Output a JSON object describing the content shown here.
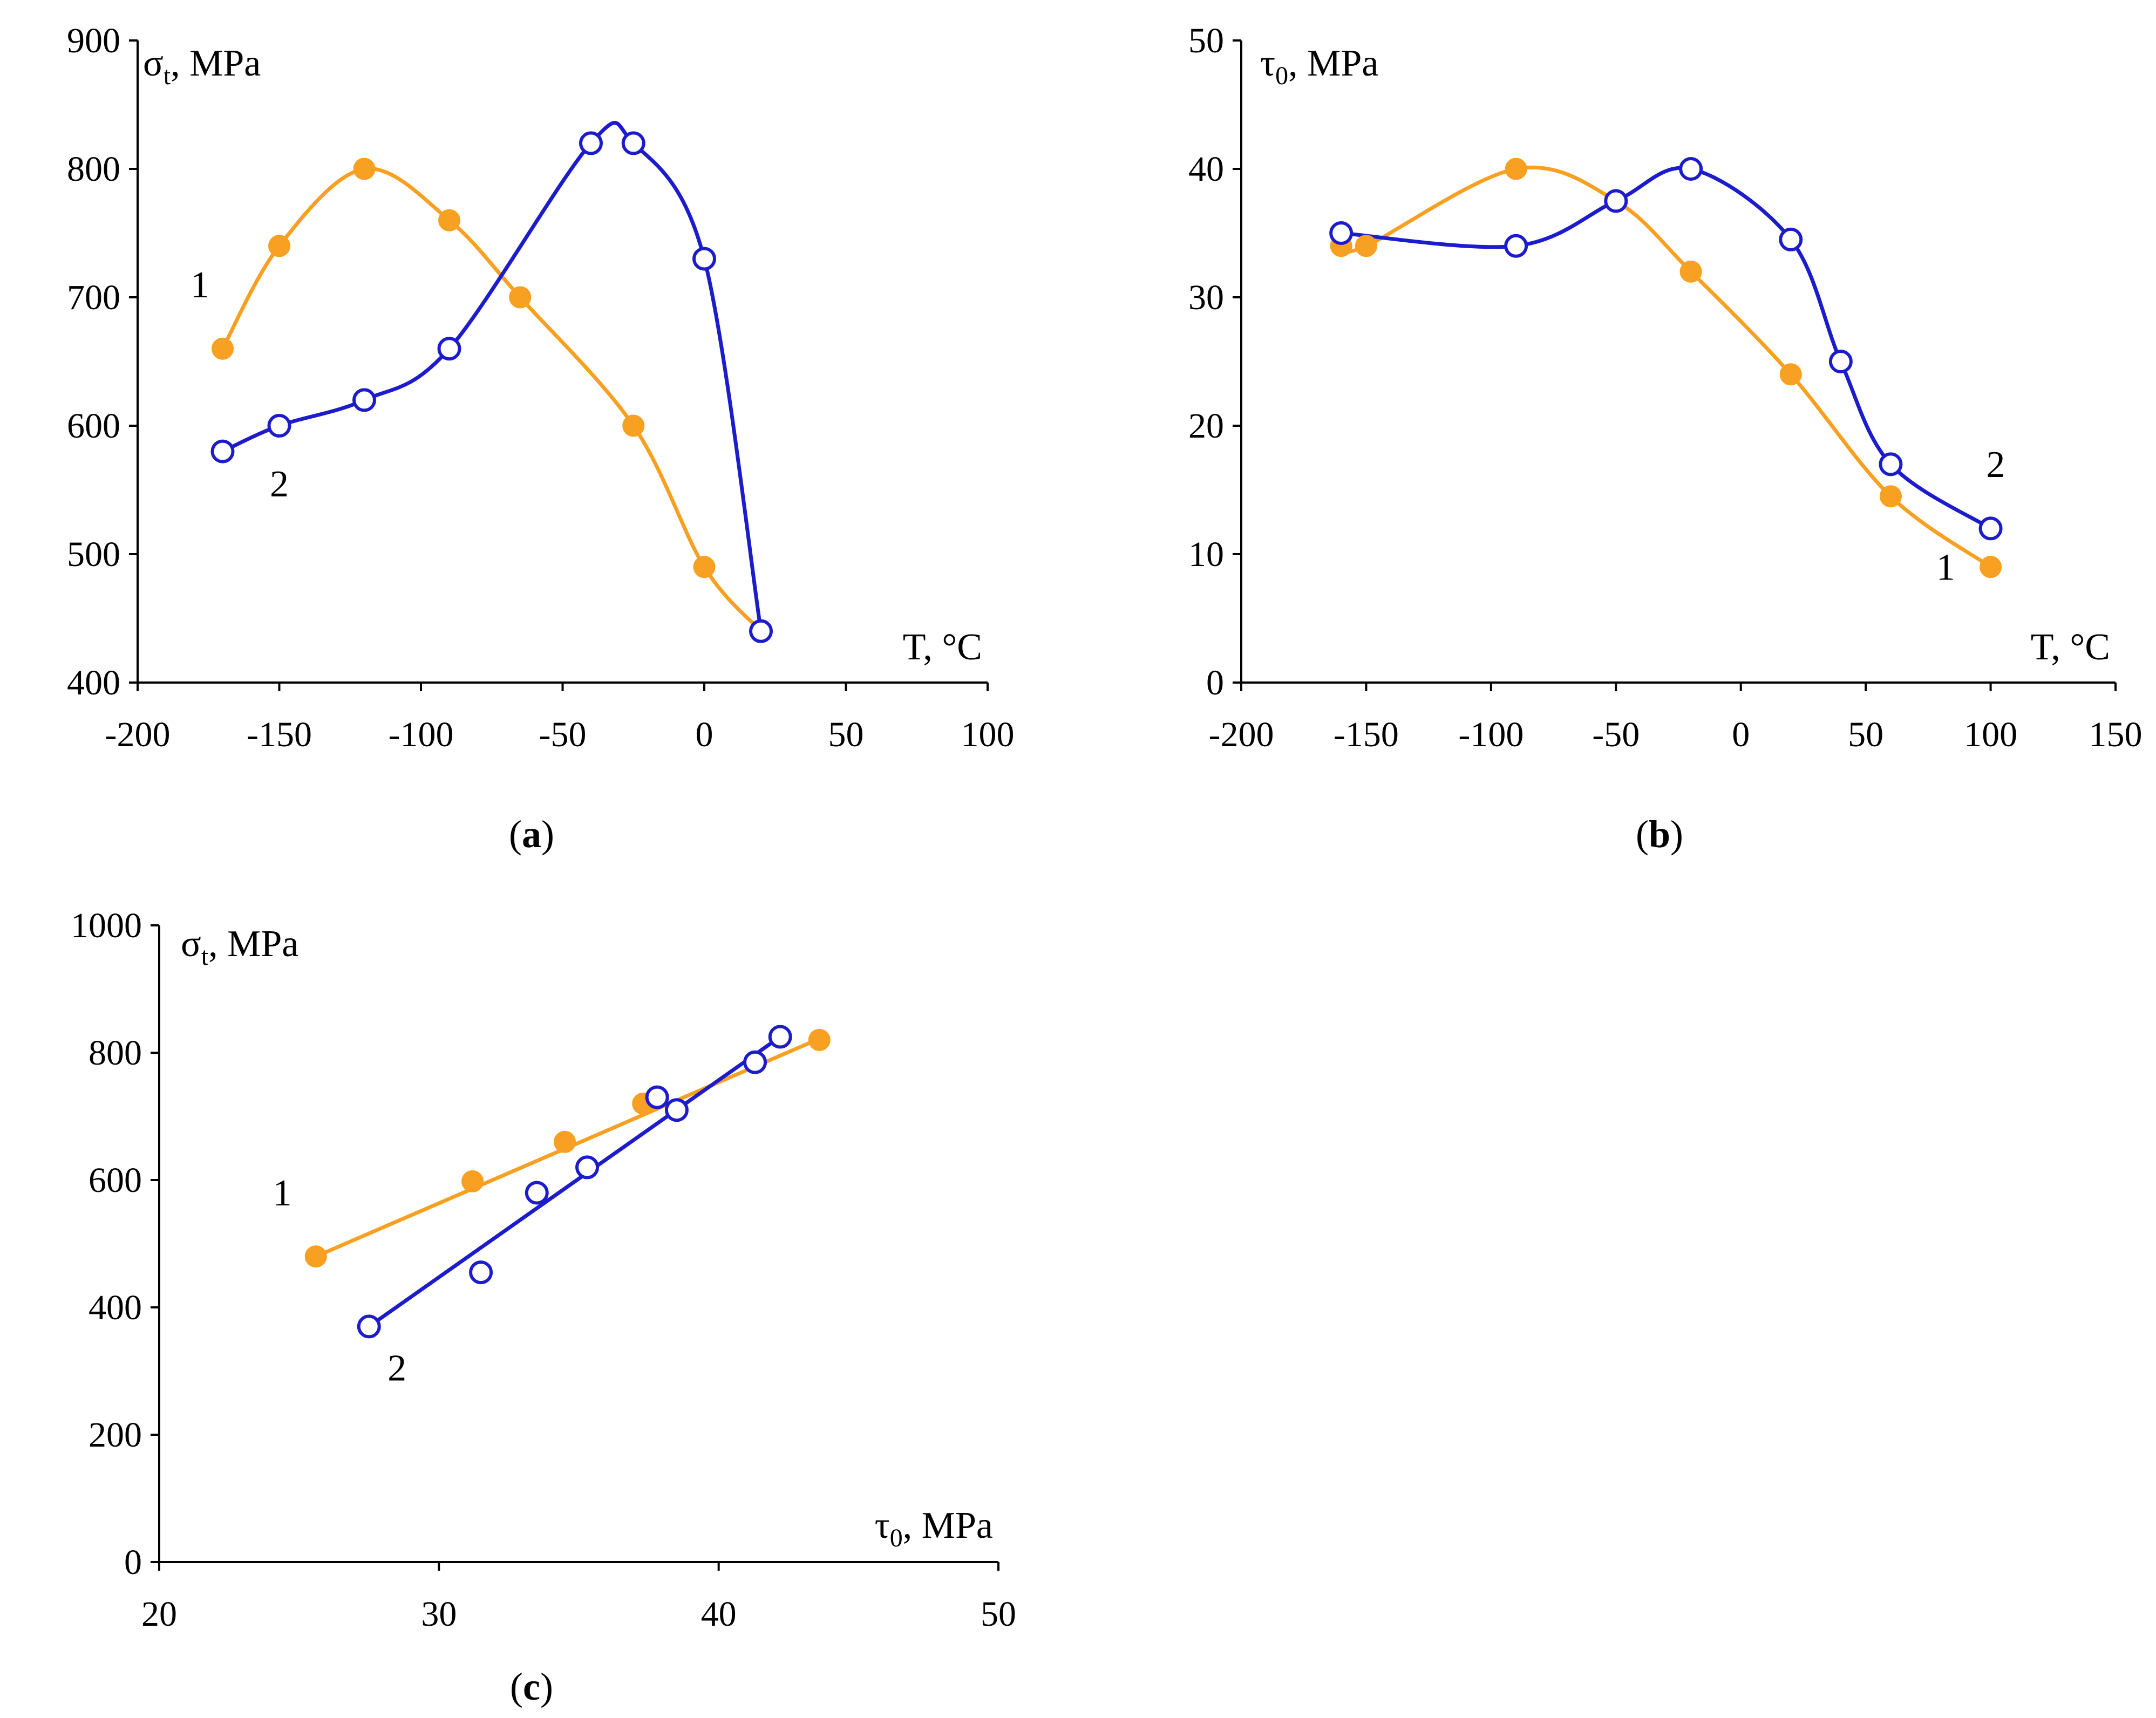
{
  "colors": {
    "orange": "#F7A021",
    "blue": "#1C1CCC",
    "axis": "#000000"
  },
  "chart_data": [
    {
      "id": "a",
      "type": "line",
      "panel_label": "a",
      "xlabel": "T, °C",
      "ylabel_main": "σ",
      "ylabel_sub": "t",
      "ylabel_rest": ", MPa",
      "xlim": [
        -200,
        100
      ],
      "ylim": [
        400,
        900
      ],
      "xticks": [
        -200,
        -150,
        -100,
        -50,
        0,
        50,
        100
      ],
      "yticks": [
        400,
        500,
        600,
        700,
        800,
        900
      ],
      "series": [
        {
          "name": "1",
          "label": "1",
          "marker": "filled",
          "color": "orange",
          "smooth": true,
          "x": [
            -170,
            -150,
            -120,
            -90,
            -65,
            -25,
            0,
            20
          ],
          "y": [
            660,
            740,
            800,
            760,
            700,
            600,
            490,
            440
          ],
          "label_at": [
            -178,
            700
          ]
        },
        {
          "name": "2",
          "label": "2",
          "marker": "open",
          "color": "blue",
          "smooth": true,
          "x": [
            -170,
            -150,
            -120,
            -90,
            -40,
            -25,
            0,
            20
          ],
          "y": [
            580,
            600,
            620,
            660,
            820,
            820,
            730,
            440
          ],
          "label_at": [
            -150,
            545
          ]
        }
      ]
    },
    {
      "id": "b",
      "type": "line",
      "panel_label": "b",
      "xlabel": "T, °C",
      "ylabel_main": "τ",
      "ylabel_sub": "0",
      "ylabel_rest": ", MPa",
      "xlim": [
        -200,
        150
      ],
      "ylim": [
        0,
        50
      ],
      "xticks": [
        -200,
        -150,
        -100,
        -50,
        0,
        50,
        100,
        150
      ],
      "yticks": [
        0,
        10,
        20,
        30,
        40,
        50
      ],
      "series": [
        {
          "name": "1",
          "label": "1",
          "marker": "filled",
          "color": "orange",
          "smooth": true,
          "x": [
            -160,
            -150,
            -90,
            -50,
            -20,
            20,
            60,
            100
          ],
          "y": [
            34,
            34,
            40,
            37.5,
            32,
            24,
            14.5,
            9
          ],
          "label_at": [
            82,
            8
          ]
        },
        {
          "name": "2",
          "label": "2",
          "marker": "open",
          "color": "blue",
          "smooth": true,
          "x": [
            -160,
            -90,
            -50,
            -20,
            20,
            40,
            60,
            100
          ],
          "y": [
            35,
            34,
            37.5,
            40,
            34.5,
            25,
            17,
            12
          ],
          "label_at": [
            102,
            16
          ]
        }
      ]
    },
    {
      "id": "c",
      "type": "scatter",
      "panel_label": "c",
      "xlabel_main": "τ",
      "xlabel_sub": "0",
      "xlabel_rest": ", MPa",
      "ylabel_main": "σ",
      "ylabel_sub": "t",
      "ylabel_rest": ", MPa",
      "xlim": [
        20,
        50
      ],
      "ylim": [
        0,
        1000
      ],
      "xticks": [
        20,
        30,
        40,
        50
      ],
      "yticks": [
        0,
        200,
        400,
        600,
        800,
        1000
      ],
      "series": [
        {
          "name": "1",
          "label": "1",
          "marker": "filled",
          "color": "orange",
          "fit": "linear",
          "x": [
            25.6,
            31.2,
            34.5,
            37.3,
            43.6
          ],
          "y": [
            480,
            598,
            660,
            720,
            820
          ],
          "line": [
            [
              25.6,
              480
            ],
            [
              43.6,
              822
            ]
          ],
          "label_at": [
            24.4,
            560
          ]
        },
        {
          "name": "2",
          "label": "2",
          "marker": "open",
          "color": "blue",
          "fit": "linear",
          "x": [
            27.5,
            31.5,
            33.5,
            35.3,
            37.8,
            38.5,
            41.3,
            42.2
          ],
          "y": [
            370,
            455,
            580,
            620,
            730,
            710,
            785,
            825
          ],
          "line": [
            [
              27.5,
              370
            ],
            [
              42.2,
              825
            ]
          ],
          "label_at": [
            28.5,
            285
          ]
        }
      ]
    }
  ]
}
